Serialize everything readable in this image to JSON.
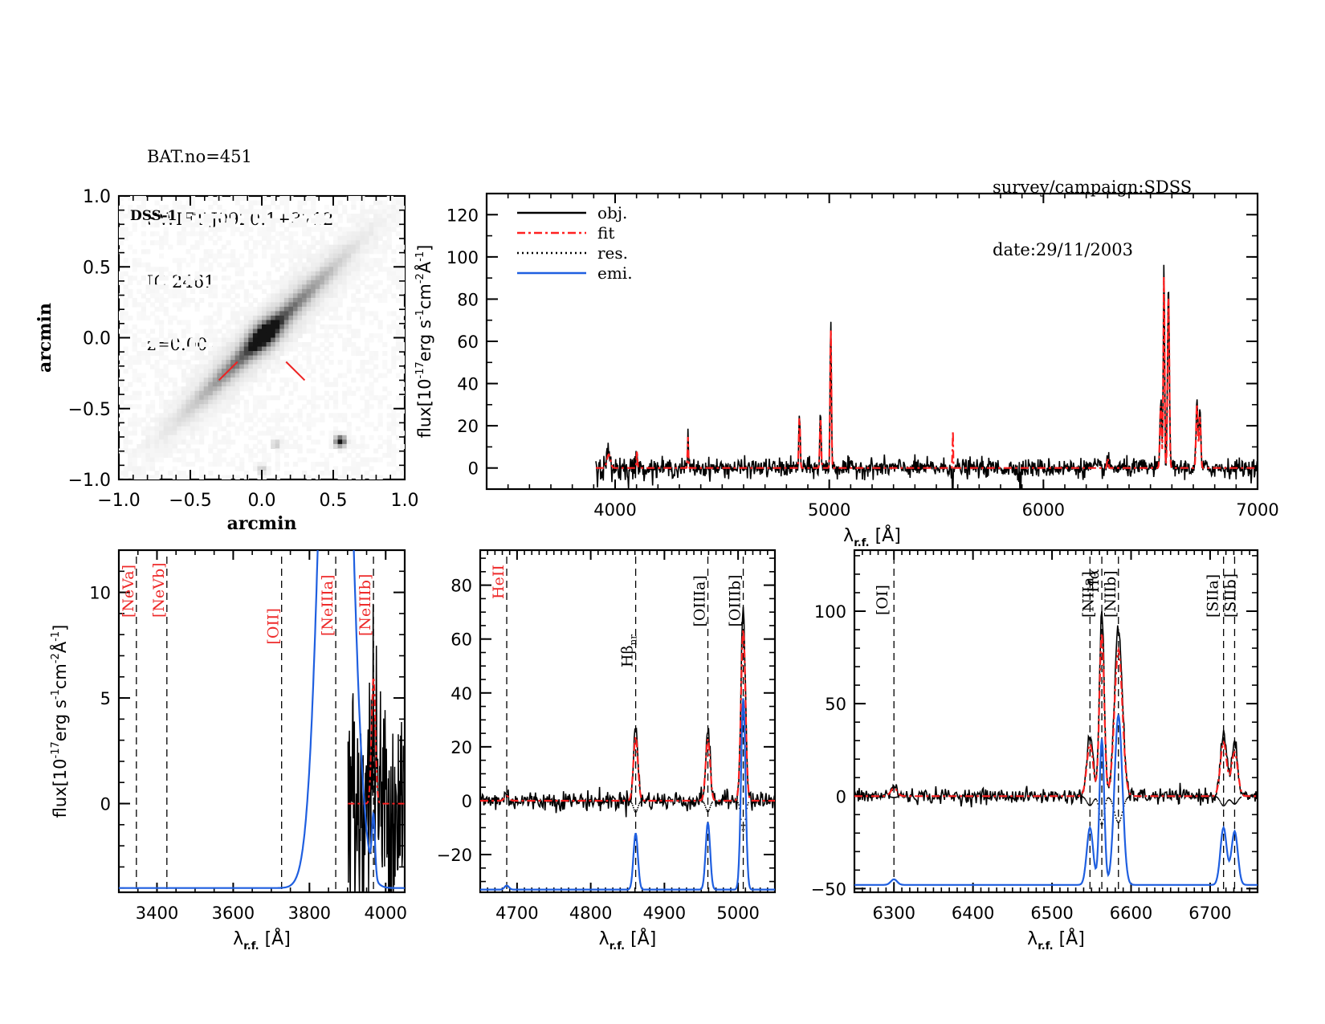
{
  "header": {
    "left_lines": [
      "BAT.no=451",
      "SWIFT J0920.1+3712",
      "IC 2461",
      "z=0.00753"
    ],
    "right_lines": [
      "survey/campaign:SDSS",
      "date:29/11/2003"
    ]
  },
  "colors": {
    "obj": "#000000",
    "fit": "#ff2020",
    "res": "#000000",
    "emi": "#1f5fe0",
    "marker": "#ee2222",
    "red_label": "#ee2a2a"
  },
  "chart_data": [
    {
      "id": "image",
      "type": "heatmap",
      "title": "DSS-1",
      "xlabel": "arcmin",
      "ylabel": "arcmin",
      "xlim": [
        -1.0,
        1.0
      ],
      "ylim": [
        -1.0,
        1.0
      ],
      "xticks": [
        "-1.0",
        "-0.5",
        "0.0",
        "0.5",
        "1.0"
      ],
      "yticks": [
        "-1.0",
        "-0.5",
        "0.0",
        "0.5",
        "1.0"
      ],
      "source": {
        "x": 0.02,
        "y": 0.02,
        "position_angle_deg": 45,
        "axis_ratio": 0.18
      },
      "star": {
        "x": 0.55,
        "y": -0.73
      },
      "faint_sources": [
        {
          "x": 0.0,
          "y": -0.93
        },
        {
          "x": 0.1,
          "y": -0.75
        }
      ],
      "slit_markers": [
        {
          "x1": -0.3,
          "y1": -0.3,
          "x2": -0.17,
          "y2": -0.17
        },
        {
          "x1": 0.17,
          "y1": -0.17,
          "x2": 0.3,
          "y2": -0.3
        }
      ]
    },
    {
      "id": "full",
      "type": "line",
      "xlabel": "λ r.f. [Å]",
      "ylabel": "flux[10^-17 erg s^-1 cm^-2 Å^-1]",
      "xlim": [
        3400,
        7000
      ],
      "ylim": [
        -10,
        130
      ],
      "xticks": [
        4000,
        5000,
        6000,
        7000
      ],
      "yticks": [
        0,
        20,
        40,
        60,
        80,
        100,
        120
      ],
      "legend": [
        "obj.",
        "fit",
        "res.",
        "emi."
      ],
      "legend_position": "top-left",
      "continuum_range": [
        3910,
        7000
      ],
      "noise": 2.2,
      "lines": [
        {
          "x": 3970,
          "peak": 7,
          "w": 8
        },
        {
          "x": 4102,
          "peak": 9,
          "w": 2
        },
        {
          "x": 4340,
          "peak": 16,
          "w": 2
        },
        {
          "x": 4861,
          "peak": 27,
          "w": 3
        },
        {
          "x": 4959,
          "peak": 26,
          "w": 3
        },
        {
          "x": 5007,
          "peak": 72,
          "w": 3
        },
        {
          "x": 5577,
          "peak": 20,
          "w": 1.5
        },
        {
          "x": 6300,
          "peak": 5,
          "w": 3
        },
        {
          "x": 6548,
          "peak": 32,
          "w": 4
        },
        {
          "x": 6563,
          "peak": 100,
          "w": 3
        },
        {
          "x": 6584,
          "peak": 90,
          "w": 4
        },
        {
          "x": 6717,
          "peak": 33,
          "w": 4
        },
        {
          "x": 6731,
          "peak": 27,
          "w": 4
        }
      ],
      "dips": [
        {
          "x": 5577,
          "depth": -12
        },
        {
          "x": 5890,
          "depth": -10
        },
        {
          "x": 5895,
          "depth": -10
        }
      ]
    },
    {
      "id": "panel1",
      "type": "line",
      "xlabel": "λ r.f. [Å]",
      "ylabel": "flux[10^-17 erg s^-1 cm^-2 Å^-1]",
      "xlim": [
        3300,
        4050
      ],
      "ylim": [
        -4.2,
        12
      ],
      "xticks": [
        3400,
        3600,
        3800,
        4000
      ],
      "yticks": [
        0,
        5,
        10
      ],
      "data_range": [
        3900,
        4050
      ],
      "noise": 3.0,
      "emi_baseline": -4.0,
      "emi_components": [
        {
          "x": 3869,
          "peak": 40,
          "w": 35
        },
        {
          "x": 3968,
          "peak": 2.8,
          "w": 4
        }
      ],
      "fit_components": [
        {
          "x": 3968,
          "peak": 6,
          "w": 5
        }
      ],
      "markers": [
        {
          "x": 3346,
          "label": "[NeVa]",
          "color": "red"
        },
        {
          "x": 3426,
          "label": "[NeVb]",
          "color": "red"
        },
        {
          "x": 3727,
          "label": "[OII]",
          "color": "red"
        },
        {
          "x": 3869,
          "label": "[NeIIIa]",
          "color": "red"
        },
        {
          "x": 3968,
          "label": "[NeIIIb]",
          "color": "red"
        }
      ]
    },
    {
      "id": "panel2",
      "type": "line",
      "xlabel": "λ r.f. [Å]",
      "xlim": [
        4650,
        5050
      ],
      "ylim": [
        -34,
        93
      ],
      "xticks": [
        4700,
        4800,
        4900,
        5000
      ],
      "yticks": [
        -20,
        0,
        20,
        40,
        60,
        80
      ],
      "noise": 1.8,
      "emi_baseline": -33,
      "lines": [
        {
          "x": 4686,
          "peak": 2,
          "w": 3,
          "emi": 1.5
        },
        {
          "x": 4861,
          "peak": 27,
          "w": 3,
          "emi": 21
        },
        {
          "x": 4959,
          "peak": 26,
          "w": 3,
          "emi": 25
        },
        {
          "x": 5007,
          "peak": 72,
          "w": 3,
          "emi": 71
        }
      ],
      "markers": [
        {
          "x": 4686,
          "label": "HeII",
          "color": "red"
        },
        {
          "x": 4861,
          "label": "Hβnr",
          "color": "black"
        },
        {
          "x": 4959,
          "label": "[OIIIa]",
          "color": "black"
        },
        {
          "x": 5007,
          "label": "[OIIIb]",
          "color": "black"
        }
      ]
    },
    {
      "id": "panel3",
      "type": "line",
      "xlabel": "λ r.f. [Å]",
      "xlim": [
        6250,
        6760
      ],
      "ylim": [
        -52,
        133
      ],
      "xticks": [
        6300,
        6400,
        6500,
        6600,
        6700
      ],
      "yticks": [
        -50,
        0,
        50,
        100
      ],
      "noise": 2.0,
      "emi_baseline": -48,
      "lines": [
        {
          "x": 6300,
          "peak": 5,
          "w": 4,
          "emi": 3
        },
        {
          "x": 6548,
          "peak": 32,
          "w": 4,
          "emi": 31
        },
        {
          "x": 6563,
          "peak": 100,
          "w": 3,
          "emi": 79
        },
        {
          "x": 6584,
          "peak": 90,
          "w": 5,
          "emi": 92
        },
        {
          "x": 6717,
          "peak": 33,
          "w": 4,
          "emi": 31
        },
        {
          "x": 6731,
          "peak": 27,
          "w": 4,
          "emi": 29
        }
      ],
      "markers": [
        {
          "x": 6300,
          "label": "[OI]",
          "color": "black"
        },
        {
          "x": 6548,
          "label": "[NIIa]",
          "color": "black"
        },
        {
          "x": 6563,
          "label": "Hα",
          "color": "black"
        },
        {
          "x": 6584,
          "label": "[NIIb]",
          "color": "black"
        },
        {
          "x": 6717,
          "label": "[SIIa]",
          "color": "black"
        },
        {
          "x": 6731,
          "label": "[SIIb]",
          "color": "black"
        }
      ]
    }
  ]
}
